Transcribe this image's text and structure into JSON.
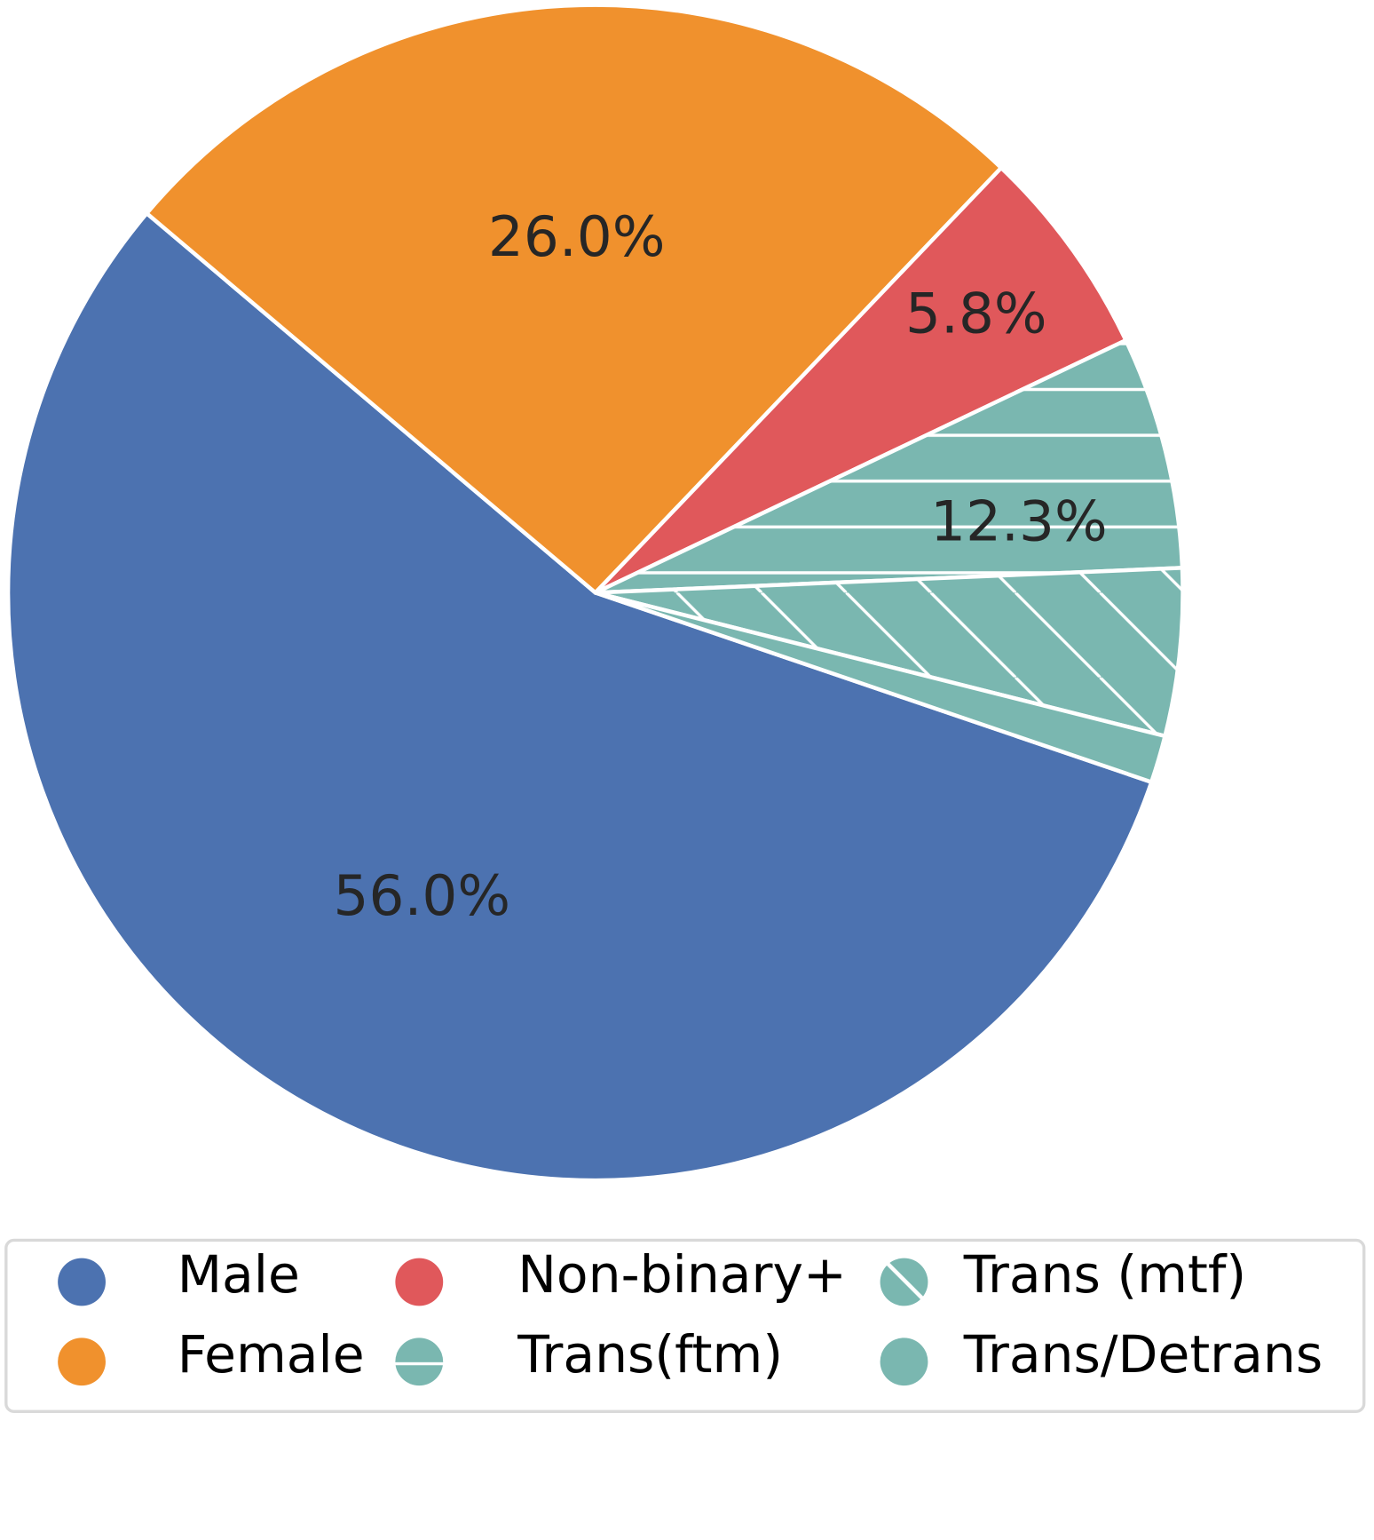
{
  "chart_data": {
    "type": "pie",
    "categories": [
      "Male",
      "Female",
      "Non-binary+",
      "Trans(ftm)",
      "Trans (mtf)",
      "Trans/Detrans"
    ],
    "values": [
      56.0,
      26.0,
      5.8,
      6.4,
      4.6,
      1.3
    ],
    "value_labels": [
      "56.0%",
      "26.0%",
      "5.8%",
      null,
      null,
      null
    ],
    "group_labels": [
      {
        "value": 12.3,
        "label": "12.3%"
      }
    ],
    "colors": [
      "#4c72b0",
      "#f0912d",
      "#e0585b",
      "#7ab7b0",
      "#7ab7b0",
      "#7ab7b0"
    ],
    "hatches": [
      null,
      null,
      null,
      "-",
      "\\",
      null
    ],
    "legend": "bottom"
  }
}
